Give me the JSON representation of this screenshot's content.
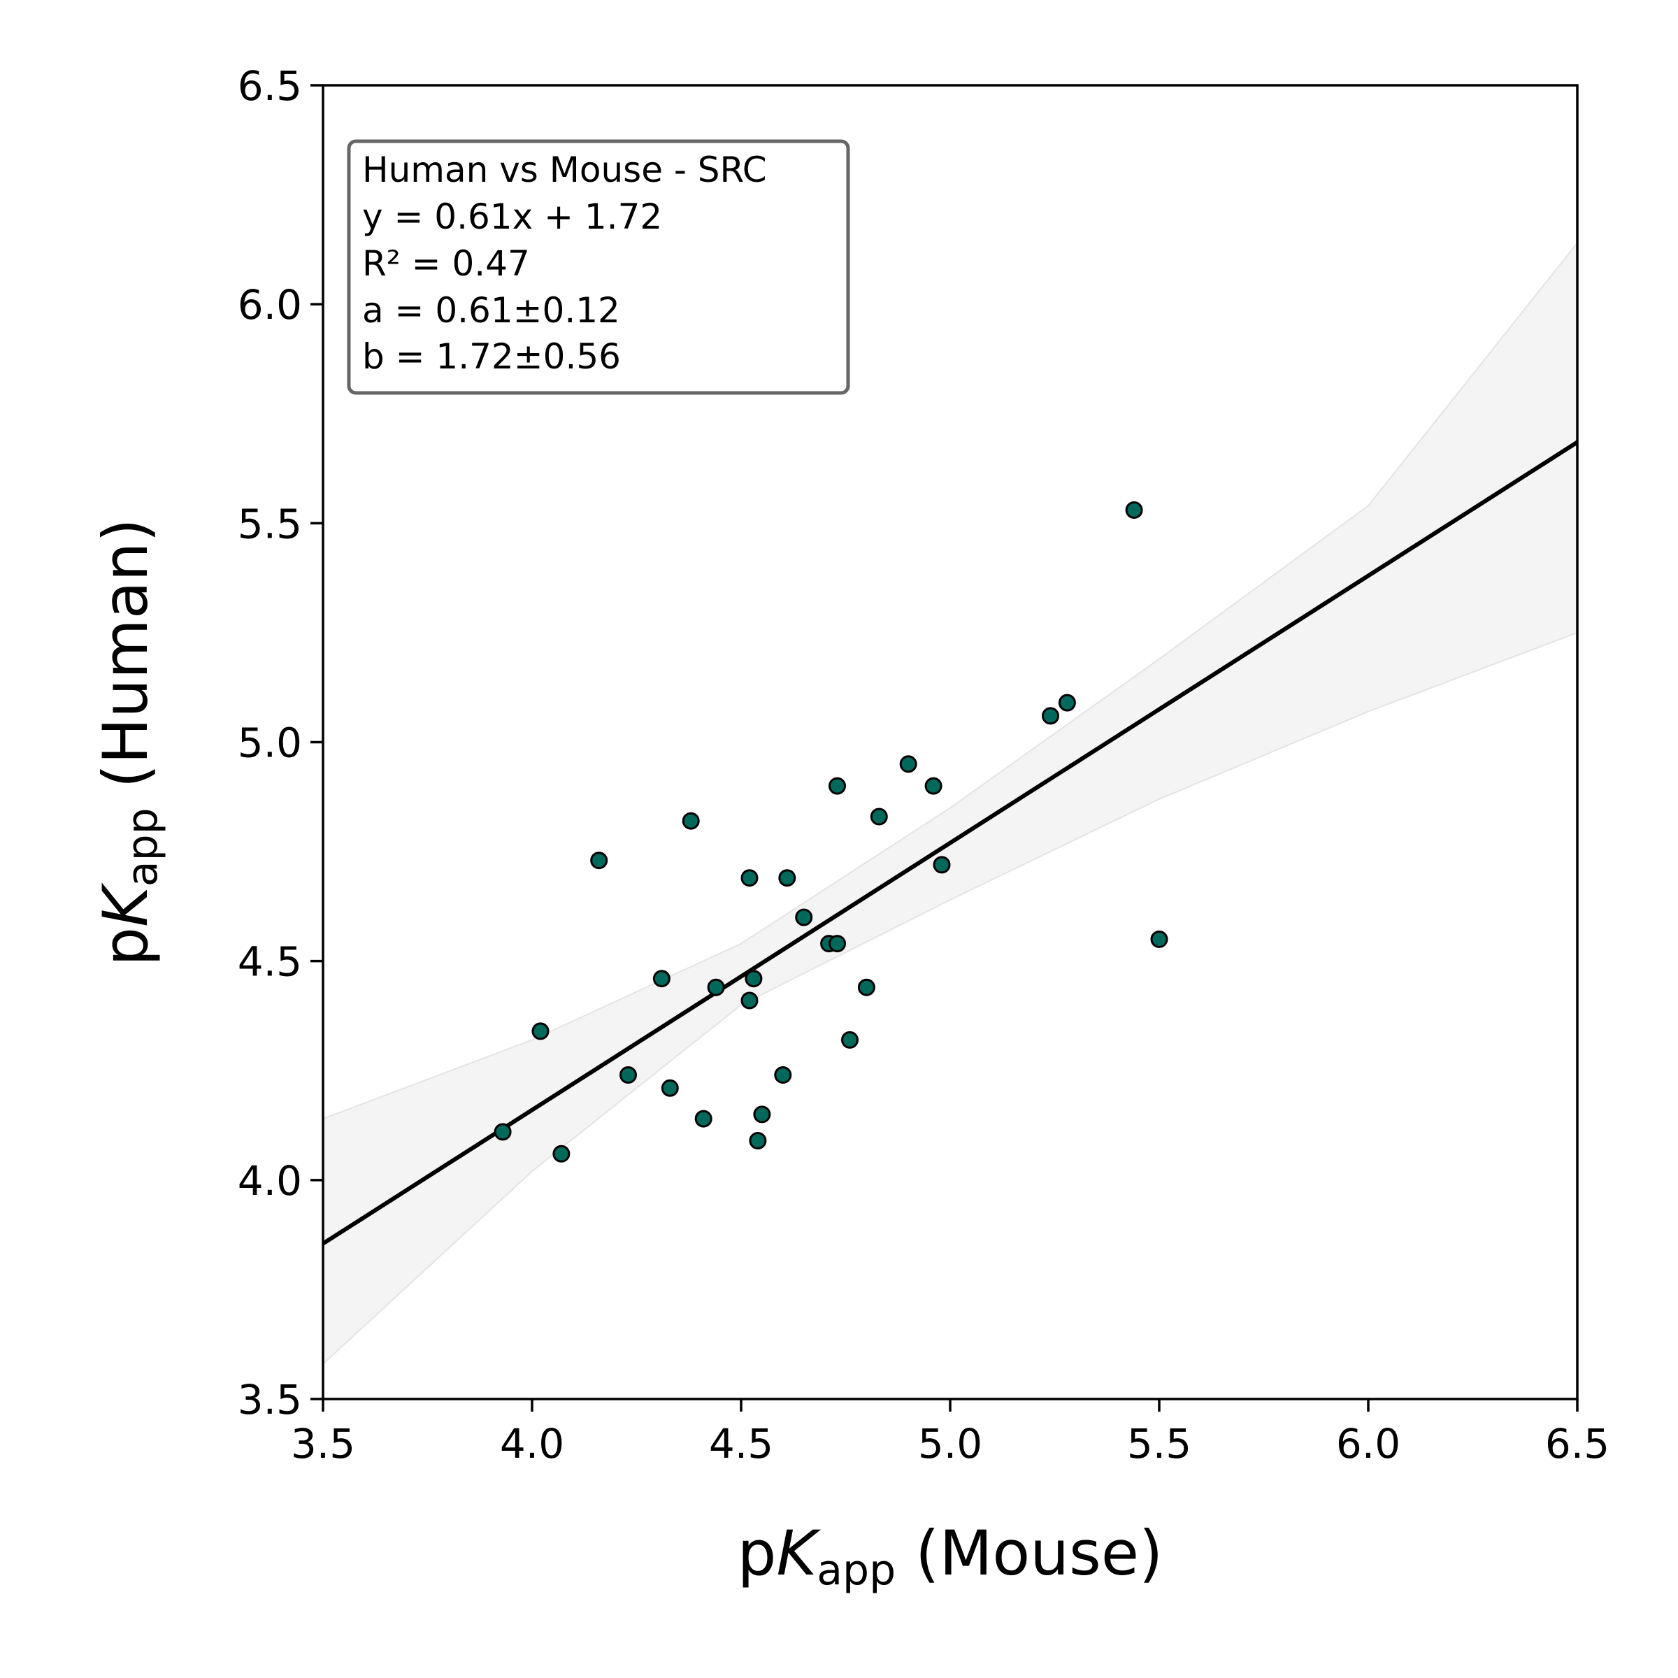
{
  "chart_data": {
    "type": "scatter",
    "xlabel": {
      "prefix": "p",
      "var": "K",
      "sub": "app",
      "suffix": " (Mouse)"
    },
    "ylabel": {
      "prefix": "p",
      "var": "K",
      "sub": "app",
      "suffix": " (Human)"
    },
    "xlim": [
      3.5,
      6.5
    ],
    "ylim": [
      3.5,
      6.5
    ],
    "xticks": [
      "3.5",
      "4.0",
      "4.5",
      "5.0",
      "5.5",
      "6.0",
      "6.5"
    ],
    "yticks": [
      "3.5",
      "4.0",
      "4.5",
      "5.0",
      "5.5",
      "6.0",
      "6.5"
    ],
    "grid": false,
    "legend_placement": "top-left",
    "annotation": {
      "title": "Human vs Mouse - SRC",
      "equation": "y = 0.61x + 1.72",
      "r2": "R² = 0.47",
      "a": "a = 0.61±0.12",
      "b": "b = 1.72±0.56"
    },
    "fit": {
      "slope": 0.61,
      "intercept": 1.72
    },
    "confidence_band": {
      "x": [
        3.5,
        4.0,
        4.5,
        5.0,
        5.5,
        6.0,
        6.5
      ],
      "upper": [
        4.14,
        4.32,
        4.54,
        4.85,
        5.19,
        5.54,
        6.14
      ],
      "lower": [
        3.58,
        4.02,
        4.4,
        4.64,
        4.87,
        5.07,
        5.25
      ]
    },
    "points": [
      [
        3.93,
        4.11
      ],
      [
        4.02,
        4.34
      ],
      [
        4.07,
        4.06
      ],
      [
        4.16,
        4.73
      ],
      [
        4.23,
        4.24
      ],
      [
        4.31,
        4.46
      ],
      [
        4.33,
        4.21
      ],
      [
        4.38,
        4.82
      ],
      [
        4.41,
        4.14
      ],
      [
        4.44,
        4.44
      ],
      [
        4.52,
        4.41
      ],
      [
        4.52,
        4.69
      ],
      [
        4.53,
        4.46
      ],
      [
        4.54,
        4.09
      ],
      [
        4.55,
        4.15
      ],
      [
        4.6,
        4.24
      ],
      [
        4.61,
        4.69
      ],
      [
        4.65,
        4.6
      ],
      [
        4.71,
        4.54
      ],
      [
        4.73,
        4.54
      ],
      [
        4.73,
        4.9
      ],
      [
        4.76,
        4.32
      ],
      [
        4.8,
        4.44
      ],
      [
        4.83,
        4.83
      ],
      [
        4.9,
        4.95
      ],
      [
        4.96,
        4.9
      ],
      [
        4.98,
        4.72
      ],
      [
        5.24,
        5.06
      ],
      [
        5.28,
        5.09
      ],
      [
        5.44,
        5.53
      ],
      [
        5.5,
        4.55
      ]
    ],
    "colors": {
      "point_fill": "#00695c",
      "point_edge": "#000000",
      "fit_line": "#000000",
      "band": "#ededed",
      "legend_border": "#666666"
    }
  }
}
